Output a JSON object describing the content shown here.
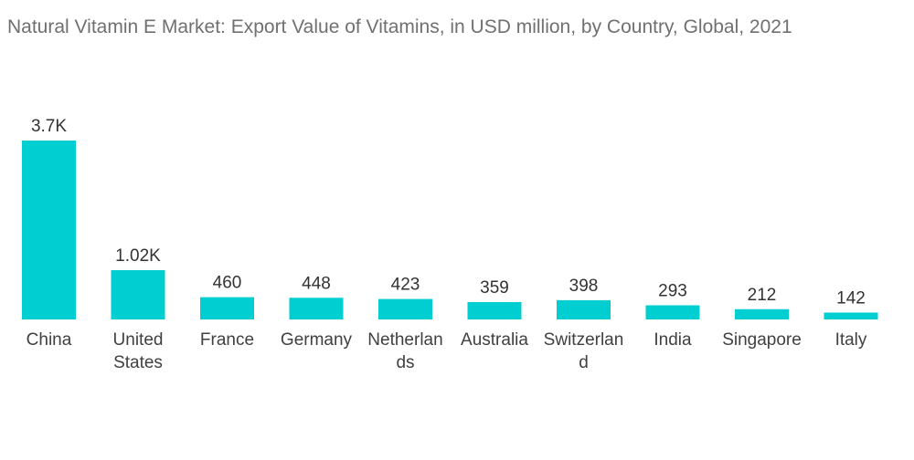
{
  "chart_data": {
    "type": "bar",
    "title": "Natural Vitamin E Market: Export Value of Vitamins, in USD million, by Country, Global, 2021",
    "categories": [
      [
        "China"
      ],
      [
        "United",
        "States"
      ],
      [
        "France"
      ],
      [
        "Germany"
      ],
      [
        "Netherlan",
        "ds"
      ],
      [
        "Australia"
      ],
      [
        "Switzerlan",
        "d"
      ],
      [
        "India"
      ],
      [
        "Singapore"
      ],
      [
        "Italy"
      ]
    ],
    "values": [
      3700,
      1020,
      460,
      448,
      423,
      359,
      398,
      293,
      212,
      142
    ],
    "value_labels": [
      "3.7K",
      "1.02K",
      "460",
      "448",
      "423",
      "359",
      "398",
      "293",
      "212",
      "142"
    ],
    "xlabel": "",
    "ylabel": "",
    "grid": false,
    "bar_color": "#00CED1"
  }
}
